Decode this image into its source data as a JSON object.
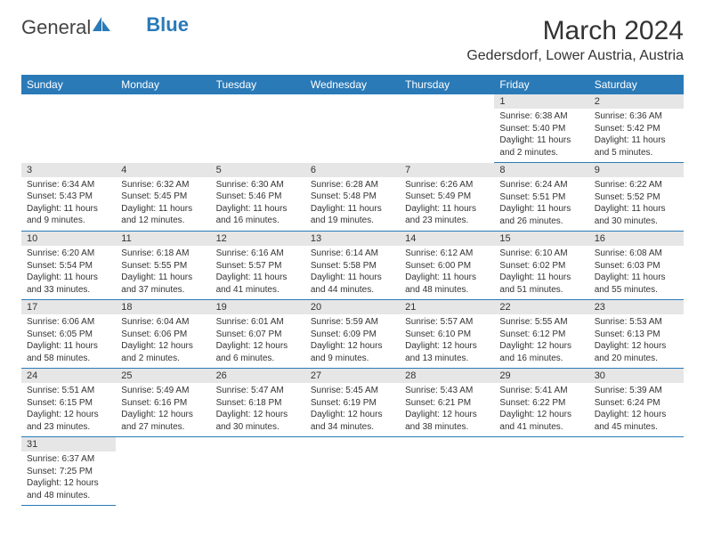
{
  "logo": {
    "text1": "General",
    "text2": "Blue"
  },
  "title": "March 2024",
  "location": "Gedersdorf, Lower Austria, Austria",
  "dayHeaders": [
    "Sunday",
    "Monday",
    "Tuesday",
    "Wednesday",
    "Thursday",
    "Friday",
    "Saturday"
  ],
  "colors": {
    "brand": "#2a7ab8",
    "headerBg": "#2a7ab8",
    "daynumBg": "#e6e6e6"
  },
  "weeks": [
    [
      null,
      null,
      null,
      null,
      null,
      {
        "n": "1",
        "sr": "Sunrise: 6:38 AM",
        "ss": "Sunset: 5:40 PM",
        "dl": "Daylight: 11 hours and 2 minutes."
      },
      {
        "n": "2",
        "sr": "Sunrise: 6:36 AM",
        "ss": "Sunset: 5:42 PM",
        "dl": "Daylight: 11 hours and 5 minutes."
      }
    ],
    [
      {
        "n": "3",
        "sr": "Sunrise: 6:34 AM",
        "ss": "Sunset: 5:43 PM",
        "dl": "Daylight: 11 hours and 9 minutes."
      },
      {
        "n": "4",
        "sr": "Sunrise: 6:32 AM",
        "ss": "Sunset: 5:45 PM",
        "dl": "Daylight: 11 hours and 12 minutes."
      },
      {
        "n": "5",
        "sr": "Sunrise: 6:30 AM",
        "ss": "Sunset: 5:46 PM",
        "dl": "Daylight: 11 hours and 16 minutes."
      },
      {
        "n": "6",
        "sr": "Sunrise: 6:28 AM",
        "ss": "Sunset: 5:48 PM",
        "dl": "Daylight: 11 hours and 19 minutes."
      },
      {
        "n": "7",
        "sr": "Sunrise: 6:26 AM",
        "ss": "Sunset: 5:49 PM",
        "dl": "Daylight: 11 hours and 23 minutes."
      },
      {
        "n": "8",
        "sr": "Sunrise: 6:24 AM",
        "ss": "Sunset: 5:51 PM",
        "dl": "Daylight: 11 hours and 26 minutes."
      },
      {
        "n": "9",
        "sr": "Sunrise: 6:22 AM",
        "ss": "Sunset: 5:52 PM",
        "dl": "Daylight: 11 hours and 30 minutes."
      }
    ],
    [
      {
        "n": "10",
        "sr": "Sunrise: 6:20 AM",
        "ss": "Sunset: 5:54 PM",
        "dl": "Daylight: 11 hours and 33 minutes."
      },
      {
        "n": "11",
        "sr": "Sunrise: 6:18 AM",
        "ss": "Sunset: 5:55 PM",
        "dl": "Daylight: 11 hours and 37 minutes."
      },
      {
        "n": "12",
        "sr": "Sunrise: 6:16 AM",
        "ss": "Sunset: 5:57 PM",
        "dl": "Daylight: 11 hours and 41 minutes."
      },
      {
        "n": "13",
        "sr": "Sunrise: 6:14 AM",
        "ss": "Sunset: 5:58 PM",
        "dl": "Daylight: 11 hours and 44 minutes."
      },
      {
        "n": "14",
        "sr": "Sunrise: 6:12 AM",
        "ss": "Sunset: 6:00 PM",
        "dl": "Daylight: 11 hours and 48 minutes."
      },
      {
        "n": "15",
        "sr": "Sunrise: 6:10 AM",
        "ss": "Sunset: 6:02 PM",
        "dl": "Daylight: 11 hours and 51 minutes."
      },
      {
        "n": "16",
        "sr": "Sunrise: 6:08 AM",
        "ss": "Sunset: 6:03 PM",
        "dl": "Daylight: 11 hours and 55 minutes."
      }
    ],
    [
      {
        "n": "17",
        "sr": "Sunrise: 6:06 AM",
        "ss": "Sunset: 6:05 PM",
        "dl": "Daylight: 11 hours and 58 minutes."
      },
      {
        "n": "18",
        "sr": "Sunrise: 6:04 AM",
        "ss": "Sunset: 6:06 PM",
        "dl": "Daylight: 12 hours and 2 minutes."
      },
      {
        "n": "19",
        "sr": "Sunrise: 6:01 AM",
        "ss": "Sunset: 6:07 PM",
        "dl": "Daylight: 12 hours and 6 minutes."
      },
      {
        "n": "20",
        "sr": "Sunrise: 5:59 AM",
        "ss": "Sunset: 6:09 PM",
        "dl": "Daylight: 12 hours and 9 minutes."
      },
      {
        "n": "21",
        "sr": "Sunrise: 5:57 AM",
        "ss": "Sunset: 6:10 PM",
        "dl": "Daylight: 12 hours and 13 minutes."
      },
      {
        "n": "22",
        "sr": "Sunrise: 5:55 AM",
        "ss": "Sunset: 6:12 PM",
        "dl": "Daylight: 12 hours and 16 minutes."
      },
      {
        "n": "23",
        "sr": "Sunrise: 5:53 AM",
        "ss": "Sunset: 6:13 PM",
        "dl": "Daylight: 12 hours and 20 minutes."
      }
    ],
    [
      {
        "n": "24",
        "sr": "Sunrise: 5:51 AM",
        "ss": "Sunset: 6:15 PM",
        "dl": "Daylight: 12 hours and 23 minutes."
      },
      {
        "n": "25",
        "sr": "Sunrise: 5:49 AM",
        "ss": "Sunset: 6:16 PM",
        "dl": "Daylight: 12 hours and 27 minutes."
      },
      {
        "n": "26",
        "sr": "Sunrise: 5:47 AM",
        "ss": "Sunset: 6:18 PM",
        "dl": "Daylight: 12 hours and 30 minutes."
      },
      {
        "n": "27",
        "sr": "Sunrise: 5:45 AM",
        "ss": "Sunset: 6:19 PM",
        "dl": "Daylight: 12 hours and 34 minutes."
      },
      {
        "n": "28",
        "sr": "Sunrise: 5:43 AM",
        "ss": "Sunset: 6:21 PM",
        "dl": "Daylight: 12 hours and 38 minutes."
      },
      {
        "n": "29",
        "sr": "Sunrise: 5:41 AM",
        "ss": "Sunset: 6:22 PM",
        "dl": "Daylight: 12 hours and 41 minutes."
      },
      {
        "n": "30",
        "sr": "Sunrise: 5:39 AM",
        "ss": "Sunset: 6:24 PM",
        "dl": "Daylight: 12 hours and 45 minutes."
      }
    ],
    [
      {
        "n": "31",
        "sr": "Sunrise: 6:37 AM",
        "ss": "Sunset: 7:25 PM",
        "dl": "Daylight: 12 hours and 48 minutes."
      },
      null,
      null,
      null,
      null,
      null,
      null
    ]
  ]
}
